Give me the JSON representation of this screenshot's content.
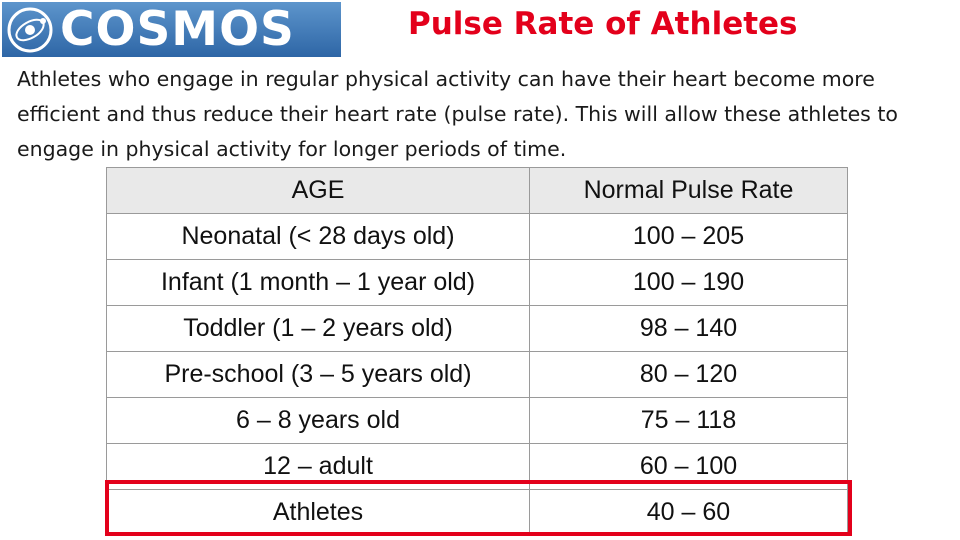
{
  "header": {
    "logo_text": "COSMOS",
    "title": "Pulse Rate of Athletes"
  },
  "intro_text": "Athletes who engage in regular physical activity can have their heart become more efficient and thus reduce their heart rate (pulse rate). This will allow these athletes to engage in physical activity for longer periods of time.",
  "table": {
    "headers": [
      "AGE",
      "Normal Pulse Rate"
    ],
    "rows": [
      [
        "Neonatal  (< 28 days old)",
        "100 – 205"
      ],
      [
        "Infant (1 month – 1 year old)",
        "100 – 190"
      ],
      [
        "Toddler (1 – 2 years old)",
        "98 – 140"
      ],
      [
        "Pre-school  (3 – 5 years old)",
        "80 – 120"
      ],
      [
        "6 – 8 years old",
        "75 – 118"
      ],
      [
        "12 – adult",
        "60 – 100"
      ],
      [
        "Athletes",
        "40 – 60"
      ]
    ],
    "highlighted_row": 6
  },
  "colors": {
    "title": "#e3001b",
    "highlight_border": "#e3001b",
    "logo_bg": "#3a74b4",
    "header_bg": "#e9e9e9"
  }
}
